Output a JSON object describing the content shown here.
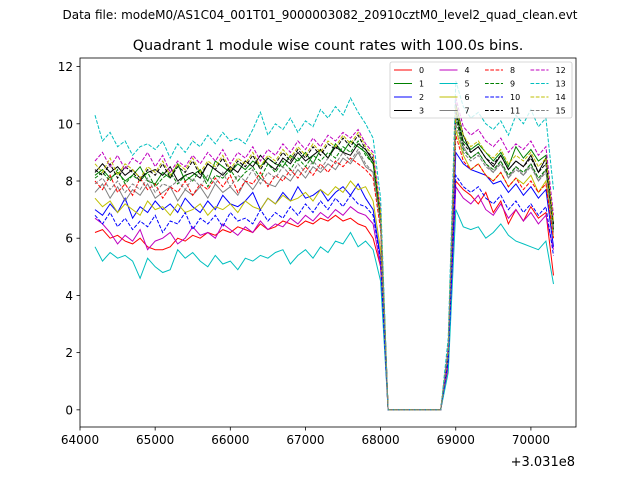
{
  "chart_data": {
    "type": "line",
    "suptitle": "Data file: modeM0/AS1C04_001T01_9000003082_20910cztM0_level2_quad_clean.evt",
    "title": "Quadrant 1 module wise count rates with 100.0s bins.",
    "xlabel": "",
    "ylabel": "",
    "x_offset_label": "+3.031e8",
    "x_offset": 303100000,
    "xlim": [
      64000,
      70600
    ],
    "ylim": [
      -0.6,
      12.3
    ],
    "x_ticks": [
      64000,
      65000,
      66000,
      67000,
      68000,
      69000,
      70000
    ],
    "x_tick_labels": [
      "64000",
      "65000",
      "66000",
      "67000",
      "68000",
      "69000",
      "70000"
    ],
    "y_ticks": [
      0,
      2,
      4,
      6,
      8,
      10,
      12
    ],
    "y_tick_labels": [
      "0",
      "2",
      "4",
      "6",
      "8",
      "10",
      "12"
    ],
    "grid": false,
    "legend_position": "top-right",
    "x": [
      64200,
      64300,
      64400,
      64500,
      64600,
      64700,
      64800,
      64900,
      65000,
      65100,
      65200,
      65300,
      65400,
      65500,
      65600,
      65700,
      65800,
      65900,
      66000,
      66100,
      66200,
      66300,
      66400,
      66500,
      66600,
      66700,
      66800,
      66900,
      67000,
      67100,
      67200,
      67300,
      67400,
      67500,
      67600,
      67700,
      67800,
      67900,
      68000,
      68100,
      68200,
      68300,
      68400,
      68500,
      68600,
      68700,
      68800,
      68900,
      69000,
      69100,
      69200,
      69300,
      69400,
      69500,
      69600,
      69700,
      69800,
      69900,
      70000,
      70100,
      70200,
      70300
    ],
    "series": [
      {
        "name": "0",
        "color": "#ff0000",
        "dash": "solid",
        "values": [
          6.2,
          6.3,
          6.0,
          6.1,
          5.9,
          5.8,
          6.0,
          5.7,
          5.6,
          5.6,
          5.7,
          6.0,
          5.9,
          6.1,
          6.0,
          6.2,
          6.1,
          6.3,
          6.2,
          6.4,
          6.3,
          6.2,
          6.5,
          6.3,
          6.4,
          6.6,
          6.5,
          6.4,
          6.6,
          6.5,
          6.7,
          6.6,
          6.8,
          6.6,
          6.7,
          6.5,
          6.4,
          6.0,
          5.0,
          0,
          0,
          0,
          0,
          0,
          0,
          0,
          0,
          1.5,
          8.0,
          7.7,
          7.5,
          7.2,
          7.6,
          6.9,
          7.3,
          6.5,
          7.0,
          6.6,
          7.1,
          6.7,
          6.9,
          4.7
        ]
      },
      {
        "name": "1",
        "color": "#008000",
        "dash": "solid",
        "values": [
          8.2,
          8.4,
          8.1,
          8.3,
          8.0,
          8.2,
          8.5,
          8.0,
          7.9,
          8.3,
          8.1,
          8.6,
          8.0,
          8.2,
          8.4,
          8.0,
          8.7,
          8.5,
          8.3,
          8.6,
          8.4,
          8.7,
          8.5,
          8.8,
          8.6,
          8.5,
          8.9,
          8.7,
          9.0,
          8.6,
          9.1,
          8.8,
          9.3,
          9.0,
          9.4,
          9.2,
          9.0,
          8.6,
          6.8,
          0,
          0,
          0,
          0,
          0,
          0,
          0,
          0,
          2.0,
          10.5,
          9.4,
          9.1,
          9.3,
          9.0,
          8.7,
          9.0,
          8.5,
          9.2,
          8.8,
          9.1,
          8.7,
          8.9,
          6.5
        ]
      },
      {
        "name": "2",
        "color": "#0000ff",
        "dash": "solid",
        "values": [
          7.0,
          6.8,
          7.2,
          6.9,
          7.4,
          6.7,
          7.1,
          6.9,
          7.3,
          7.0,
          7.2,
          6.9,
          7.4,
          7.1,
          6.9,
          7.3,
          7.0,
          7.5,
          7.2,
          7.1,
          7.3,
          7.6,
          7.0,
          7.4,
          7.2,
          7.6,
          7.3,
          7.8,
          7.4,
          7.5,
          7.7,
          7.3,
          7.6,
          7.8,
          7.5,
          7.9,
          7.4,
          7.0,
          5.3,
          0,
          0,
          0,
          0,
          0,
          0,
          0,
          0,
          2.0,
          9.0,
          8.6,
          8.4,
          8.3,
          8.2,
          7.9,
          8.0,
          7.6,
          7.9,
          7.5,
          7.8,
          7.4,
          7.7,
          5.7
        ]
      },
      {
        "name": "3",
        "color": "#000000",
        "dash": "solid",
        "values": [
          8.3,
          8.6,
          8.3,
          8.5,
          8.2,
          8.4,
          8.1,
          8.3,
          8.4,
          8.2,
          8.5,
          8.0,
          8.2,
          8.3,
          8.1,
          8.6,
          8.4,
          8.2,
          8.5,
          8.3,
          8.7,
          8.5,
          8.9,
          8.6,
          8.4,
          8.8,
          8.6,
          9.0,
          8.7,
          8.9,
          9.1,
          8.8,
          9.2,
          9.0,
          8.9,
          9.3,
          9.1,
          8.7,
          6.8,
          0,
          0,
          0,
          0,
          0,
          0,
          0,
          0,
          2.0,
          10.7,
          9.6,
          9.0,
          9.2,
          8.8,
          8.5,
          8.9,
          8.4,
          8.7,
          8.5,
          8.9,
          8.3,
          8.8,
          6.3
        ]
      },
      {
        "name": "4",
        "color": "#bf00bf",
        "dash": "solid",
        "values": [
          6.7,
          6.5,
          6.2,
          5.8,
          6.1,
          5.9,
          6.3,
          5.6,
          5.9,
          6.0,
          6.2,
          5.8,
          6.0,
          6.4,
          6.1,
          6.2,
          6.0,
          6.5,
          6.3,
          6.1,
          6.4,
          6.2,
          6.6,
          6.3,
          6.5,
          6.4,
          6.7,
          6.5,
          6.8,
          6.6,
          6.9,
          6.7,
          7.0,
          6.8,
          7.1,
          6.9,
          6.8,
          6.5,
          5.0,
          0,
          0,
          0,
          0,
          0,
          0,
          0,
          0,
          1.6,
          7.8,
          7.4,
          7.2,
          7.5,
          7.0,
          6.8,
          7.2,
          6.7,
          7.0,
          6.6,
          6.9,
          6.5,
          6.8,
          5.6
        ]
      },
      {
        "name": "5",
        "color": "#00bfbf",
        "dash": "solid",
        "values": [
          5.7,
          5.2,
          5.5,
          5.3,
          5.4,
          5.2,
          4.6,
          5.3,
          5.0,
          4.8,
          4.9,
          5.6,
          5.3,
          5.5,
          5.2,
          5.0,
          5.4,
          5.1,
          5.2,
          4.9,
          5.3,
          5.2,
          5.4,
          5.3,
          5.5,
          5.6,
          5.1,
          5.4,
          5.6,
          5.3,
          5.7,
          5.5,
          5.9,
          5.8,
          6.2,
          5.7,
          5.9,
          5.6,
          4.5,
          0,
          0,
          0,
          0,
          0,
          0,
          0,
          0,
          1.3,
          7.0,
          6.4,
          6.3,
          6.4,
          6.0,
          6.2,
          6.5,
          6.1,
          5.9,
          5.8,
          5.7,
          5.6,
          5.9,
          4.4
        ]
      },
      {
        "name": "6",
        "color": "#bfbf00",
        "dash": "solid",
        "values": [
          7.4,
          7.1,
          7.3,
          6.9,
          7.2,
          7.0,
          6.8,
          7.3,
          7.0,
          7.1,
          6.8,
          7.2,
          6.9,
          7.0,
          7.2,
          6.8,
          7.1,
          7.0,
          7.2,
          6.9,
          7.3,
          7.1,
          7.0,
          7.4,
          7.2,
          7.5,
          7.3,
          7.4,
          7.6,
          7.3,
          7.7,
          7.5,
          7.8,
          7.6,
          8.0,
          7.7,
          7.8,
          7.3,
          5.6,
          0,
          0,
          0,
          0,
          0,
          0,
          0,
          0,
          2.0,
          9.8,
          8.9,
          8.4,
          8.6,
          8.2,
          8.0,
          8.3,
          7.8,
          8.1,
          7.9,
          8.2,
          7.6,
          8.0,
          6.0
        ]
      },
      {
        "name": "7",
        "color": "#808080",
        "dash": "solid",
        "values": [
          7.6,
          7.9,
          7.4,
          7.8,
          7.3,
          7.7,
          7.5,
          7.9,
          7.4,
          7.6,
          7.8,
          7.3,
          7.7,
          7.5,
          7.8,
          7.4,
          7.9,
          7.6,
          7.8,
          7.5,
          8.0,
          7.7,
          8.1,
          7.9,
          7.8,
          8.2,
          8.0,
          8.4,
          8.1,
          8.5,
          8.3,
          8.6,
          8.4,
          8.8,
          8.6,
          9.0,
          8.5,
          8.3,
          6.5,
          0,
          0,
          0,
          0,
          0,
          0,
          0,
          0,
          2.1,
          10.3,
          9.2,
          8.8,
          9.0,
          8.6,
          8.3,
          8.7,
          8.1,
          8.5,
          8.2,
          8.6,
          8.0,
          8.4,
          6.4
        ]
      },
      {
        "name": "8",
        "color": "#ff0000",
        "dash": "dashed",
        "values": [
          8.0,
          7.7,
          8.2,
          7.6,
          7.9,
          7.5,
          8.1,
          7.7,
          7.9,
          7.4,
          7.8,
          7.6,
          8.0,
          7.5,
          7.9,
          7.7,
          8.1,
          7.8,
          8.2,
          7.6,
          8.0,
          7.9,
          8.3,
          7.8,
          8.2,
          8.0,
          8.4,
          8.1,
          8.5,
          8.2,
          8.6,
          8.3,
          8.7,
          8.5,
          8.8,
          8.6,
          8.4,
          8.1,
          6.3,
          0,
          0,
          0,
          0,
          0,
          0,
          0,
          0,
          1.9,
          9.6,
          8.7,
          8.4,
          8.6,
          8.2,
          8.0,
          8.3,
          7.8,
          8.1,
          7.7,
          8.0,
          7.6,
          7.9,
          6.0
        ]
      },
      {
        "name": "9",
        "color": "#008000",
        "dash": "dashed",
        "values": [
          8.1,
          8.3,
          8.0,
          8.4,
          7.9,
          8.2,
          8.0,
          8.3,
          7.8,
          8.1,
          8.3,
          7.9,
          8.2,
          8.0,
          8.4,
          7.8,
          8.2,
          8.1,
          8.4,
          8.0,
          8.3,
          8.5,
          8.1,
          8.6,
          8.3,
          8.7,
          8.4,
          8.8,
          8.5,
          8.9,
          8.7,
          9.0,
          8.8,
          9.2,
          9.0,
          9.4,
          8.9,
          8.6,
          6.6,
          0,
          0,
          0,
          0,
          0,
          0,
          0,
          0,
          2.0,
          10.2,
          9.1,
          8.8,
          9.0,
          8.6,
          8.4,
          8.7,
          8.2,
          8.5,
          8.3,
          8.6,
          8.1,
          8.4,
          6.3
        ]
      },
      {
        "name": "10",
        "color": "#0000ff",
        "dash": "dashed",
        "values": [
          6.8,
          6.5,
          6.9,
          6.4,
          6.7,
          6.3,
          6.6,
          6.4,
          6.8,
          6.2,
          6.6,
          6.5,
          6.9,
          6.3,
          6.7,
          6.5,
          6.8,
          6.4,
          6.9,
          6.6,
          6.7,
          6.5,
          7.0,
          6.6,
          6.9,
          6.7,
          7.1,
          6.8,
          7.2,
          6.9,
          7.3,
          7.0,
          7.4,
          7.1,
          7.5,
          7.2,
          7.1,
          6.8,
          5.2,
          0,
          0,
          0,
          0,
          0,
          0,
          0,
          0,
          1.7,
          8.2,
          7.8,
          7.6,
          7.8,
          7.4,
          7.2,
          7.5,
          7.0,
          7.3,
          6.9,
          7.2,
          6.8,
          7.1,
          5.4
        ]
      },
      {
        "name": "11",
        "color": "#000000",
        "dash": "dashed",
        "values": [
          8.4,
          8.2,
          8.6,
          8.1,
          8.5,
          8.3,
          8.0,
          8.4,
          8.2,
          8.6,
          8.1,
          8.5,
          8.3,
          8.7,
          8.2,
          8.6,
          8.4,
          8.8,
          8.3,
          8.7,
          8.5,
          8.9,
          8.4,
          8.8,
          8.6,
          9.0,
          8.7,
          9.1,
          8.8,
          9.2,
          8.9,
          9.3,
          9.1,
          9.5,
          9.2,
          9.6,
          9.1,
          8.8,
          6.9,
          0,
          0,
          0,
          0,
          0,
          0,
          0,
          0,
          2.1,
          10.4,
          9.3,
          9.0,
          9.2,
          8.8,
          8.6,
          8.9,
          8.4,
          8.7,
          8.5,
          8.8,
          8.3,
          8.6,
          6.5
        ]
      },
      {
        "name": "12",
        "color": "#bf00bf",
        "dash": "dashed",
        "values": [
          8.7,
          9.0,
          8.5,
          8.9,
          8.4,
          8.8,
          8.6,
          9.0,
          8.5,
          8.9,
          8.3,
          8.7,
          8.5,
          8.9,
          8.6,
          9.0,
          8.7,
          9.1,
          8.6,
          9.0,
          8.8,
          9.2,
          8.7,
          9.1,
          8.9,
          9.3,
          9.0,
          9.4,
          9.1,
          9.5,
          9.2,
          9.6,
          9.4,
          9.7,
          9.5,
          9.8,
          9.3,
          9.0,
          7.0,
          0,
          0,
          0,
          0,
          0,
          0,
          0,
          0,
          2.2,
          10.9,
          9.9,
          9.6,
          9.8,
          9.4,
          9.2,
          9.5,
          9.0,
          9.3,
          9.1,
          9.4,
          8.9,
          9.2,
          6.8
        ]
      },
      {
        "name": "13",
        "color": "#00bfbf",
        "dash": "dashed",
        "values": [
          10.3,
          9.4,
          9.7,
          9.2,
          9.4,
          8.9,
          9.2,
          9.3,
          9.1,
          9.4,
          8.8,
          9.3,
          9.0,
          9.4,
          9.2,
          9.6,
          9.3,
          9.7,
          9.4,
          9.5,
          9.3,
          9.8,
          10.4,
          9.6,
          10.0,
          9.8,
          10.2,
          9.7,
          10.1,
          9.9,
          10.5,
          10.2,
          10.6,
          10.3,
          10.9,
          10.4,
          10.0,
          9.5,
          7.4,
          0,
          0,
          0,
          0,
          0,
          0,
          0,
          0,
          2.5,
          11.5,
          10.6,
          10.2,
          10.4,
          10.0,
          9.8,
          10.1,
          9.6,
          10.3,
          10.0,
          10.5,
          9.9,
          10.2,
          7.7
        ]
      },
      {
        "name": "14",
        "color": "#bfbf00",
        "dash": "dashed",
        "values": [
          8.6,
          8.3,
          8.8,
          8.2,
          8.6,
          8.4,
          8.1,
          8.5,
          8.3,
          8.7,
          8.2,
          8.6,
          8.4,
          8.8,
          8.3,
          8.7,
          8.5,
          8.9,
          8.4,
          8.8,
          8.6,
          9.0,
          8.5,
          8.9,
          8.7,
          9.1,
          8.8,
          9.2,
          8.9,
          9.3,
          9.0,
          9.4,
          9.2,
          9.6,
          9.3,
          9.7,
          9.2,
          8.9,
          6.9,
          0,
          0,
          0,
          0,
          0,
          0,
          0,
          0,
          2.1,
          10.6,
          9.6,
          9.2,
          9.4,
          9.0,
          8.8,
          9.1,
          8.6,
          8.9,
          8.7,
          9.0,
          8.5,
          8.8,
          6.6
        ]
      },
      {
        "name": "15",
        "color": "#808080",
        "dash": "dashed",
        "values": [
          7.9,
          8.1,
          7.7,
          8.0,
          7.6,
          7.9,
          7.7,
          8.1,
          7.6,
          7.9,
          7.8,
          8.0,
          7.7,
          8.1,
          7.8,
          8.2,
          7.9,
          8.3,
          7.8,
          8.2,
          8.0,
          8.4,
          7.9,
          8.3,
          8.1,
          8.5,
          8.2,
          8.6,
          8.3,
          8.7,
          8.4,
          8.8,
          8.6,
          9.0,
          8.7,
          9.1,
          8.6,
          8.3,
          6.5,
          0,
          0,
          0,
          0,
          0,
          0,
          0,
          0,
          2.0,
          10.0,
          9.0,
          8.7,
          8.9,
          8.5,
          8.3,
          8.6,
          8.1,
          8.4,
          8.2,
          8.5,
          8.0,
          8.3,
          6.2
        ]
      }
    ]
  }
}
